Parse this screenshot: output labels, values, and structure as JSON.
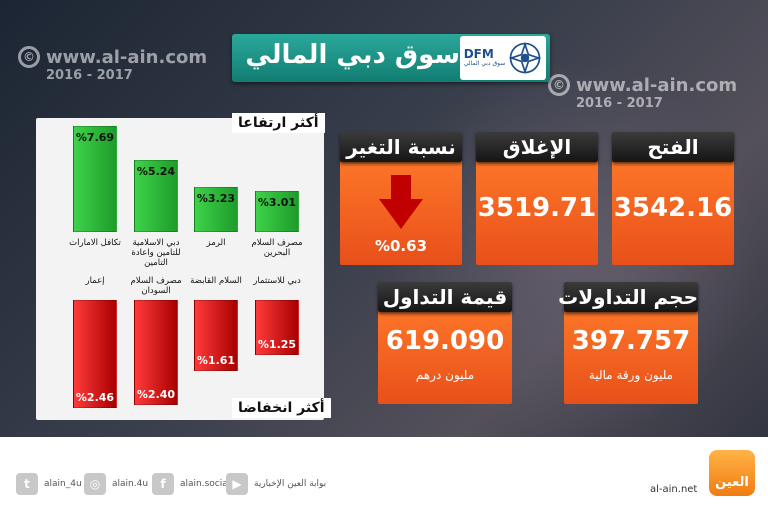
{
  "watermark": {
    "url": "www.al-ain.com",
    "years": "2016 - 2017",
    "copy": "©"
  },
  "header": {
    "title": "سوق دبي المالي",
    "logo_abbr": "DFM",
    "logo_sub": "سوق دبي المالي"
  },
  "gainers": {
    "label": "أكثر ارتفاعا",
    "items": [
      {
        "name": "تكافل الامارات",
        "value": "%7.69",
        "pct": 7.69
      },
      {
        "name": "دبي الاسلامية للتامين واعادة التامين",
        "value": "%5.24",
        "pct": 5.24
      },
      {
        "name": "الرمز",
        "value": "%3.23",
        "pct": 3.23
      },
      {
        "name": "مصرف السلام البحرين",
        "value": "%3.01",
        "pct": 3.01
      }
    ]
  },
  "losers": {
    "label": "أكثر انخفاضا",
    "items": [
      {
        "name": "إعمار",
        "value": "%2.46",
        "pct": 2.46
      },
      {
        "name": "مصرف السلام السودان",
        "value": "%2.40",
        "pct": 2.4
      },
      {
        "name": "السلام القابضة",
        "value": "%1.61",
        "pct": 1.61
      },
      {
        "name": "دبي للاستثمار",
        "value": "%1.25",
        "pct": 1.25
      }
    ]
  },
  "stats": {
    "change_label": "نسبة التغير",
    "change_value": "%0.63",
    "close_label": "الإغلاق",
    "close_value": "3519.71",
    "open_label": "الفتح",
    "open_value": "3542.16",
    "value_label": "قيمة التداول",
    "value_value": "619.090",
    "value_unit": "مليون درهم",
    "volume_label": "حجم التداولات",
    "volume_value": "397.757",
    "volume_unit": "مليون ورقة مالية"
  },
  "colors": {
    "accent": "#f2662a",
    "gain": "#2cb83a",
    "loss": "#d40000",
    "teal": "#1a9085"
  },
  "footer": {
    "twitter": "alain_4u",
    "instagram": "alain.4u",
    "facebook": "alain.social",
    "youtube": "بوابة العين الإخبارية",
    "site": "al-ain.net",
    "logo_text": "العين"
  }
}
